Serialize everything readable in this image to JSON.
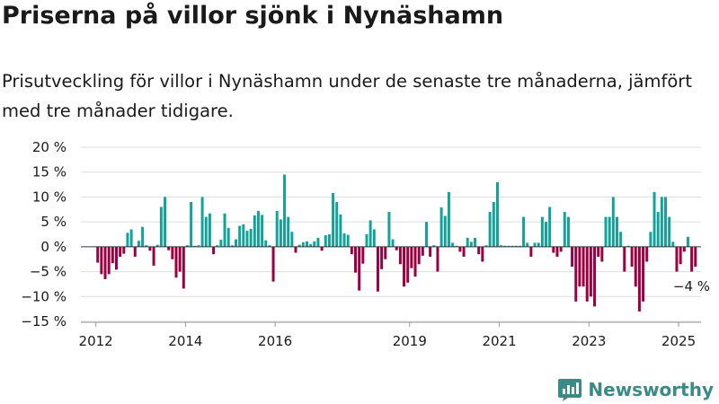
{
  "title": "Priserna på villor sjönk i Nynäshamn",
  "subtitle": "Prisutveckling för villor i Nynäshamn under de senaste tre månaderna, jämfört med tre månader tidigare.",
  "brand": {
    "name": "Newsworthy",
    "icon": "newsworthy-logo-icon",
    "color": "#3b8a86"
  },
  "colors": {
    "positive": "#11a39a",
    "negative": "#9b0042",
    "grid": "#dddddd",
    "zero_line": "#333333"
  },
  "chart_data": {
    "type": "bar",
    "xlabel": "",
    "ylabel": "",
    "ylim": [
      -15,
      20
    ],
    "yticks": [
      -15,
      -10,
      -5,
      0,
      5,
      10,
      15,
      20
    ],
    "ytick_labels": [
      "−15 %",
      "−10 %",
      "−5 %",
      "0 %",
      "5 %",
      "10 %",
      "15 %",
      "20 %"
    ],
    "xlim": [
      "2011-09",
      "2025-07"
    ],
    "xtick_labels": [
      {
        "label": "2012",
        "x": "2012-01"
      },
      {
        "label": "2014",
        "x": "2014-01"
      },
      {
        "label": "2016",
        "x": "2016-01"
      },
      {
        "label": "2019",
        "x": "2019-01"
      },
      {
        "label": "2021",
        "x": "2021-01"
      },
      {
        "label": "2023",
        "x": "2023-01"
      },
      {
        "label": "2025",
        "x": "2025-01"
      }
    ],
    "grid": true,
    "annotation": {
      "text": "−4 %",
      "x": "2025-03",
      "y": -4
    },
    "series": [
      {
        "values": [
          {
            "x": "2012-01",
            "y": -3.2
          },
          {
            "x": "2012-02",
            "y": -5.5
          },
          {
            "x": "2012-03",
            "y": -6.5
          },
          {
            "x": "2012-04",
            "y": -5.5
          },
          {
            "x": "2012-05",
            "y": -3.3
          },
          {
            "x": "2012-06",
            "y": -4.6
          },
          {
            "x": "2012-07",
            "y": -2.0
          },
          {
            "x": "2012-08",
            "y": -1.4
          },
          {
            "x": "2012-09",
            "y": 2.8
          },
          {
            "x": "2012-10",
            "y": 3.5
          },
          {
            "x": "2012-11",
            "y": -2.0
          },
          {
            "x": "2012-12",
            "y": 1.2
          },
          {
            "x": "2013-01",
            "y": 4.0
          },
          {
            "x": "2013-02",
            "y": 0.3
          },
          {
            "x": "2013-03",
            "y": -0.8
          },
          {
            "x": "2013-04",
            "y": -3.8
          },
          {
            "x": "2013-05",
            "y": 0.4
          },
          {
            "x": "2013-06",
            "y": 8.0
          },
          {
            "x": "2013-07",
            "y": 10.0
          },
          {
            "x": "2013-08",
            "y": -0.7
          },
          {
            "x": "2013-09",
            "y": -2.5
          },
          {
            "x": "2013-10",
            "y": -6.2
          },
          {
            "x": "2013-11",
            "y": -5.0
          },
          {
            "x": "2013-12",
            "y": -8.4
          },
          {
            "x": "2014-01",
            "y": 0.3
          },
          {
            "x": "2014-02",
            "y": 9.0
          },
          {
            "x": "2014-03",
            "y": 0.2
          },
          {
            "x": "2014-04",
            "y": 0.3
          },
          {
            "x": "2014-05",
            "y": 10.0
          },
          {
            "x": "2014-06",
            "y": 6.0
          },
          {
            "x": "2014-07",
            "y": 6.7
          },
          {
            "x": "2014-08",
            "y": -1.5
          },
          {
            "x": "2014-09",
            "y": 0.3
          },
          {
            "x": "2014-10",
            "y": 1.4
          },
          {
            "x": "2014-11",
            "y": 6.7
          },
          {
            "x": "2014-12",
            "y": 3.8
          },
          {
            "x": "2015-01",
            "y": 0.3
          },
          {
            "x": "2015-02",
            "y": 1.5
          },
          {
            "x": "2015-03",
            "y": 4.2
          },
          {
            "x": "2015-04",
            "y": 4.5
          },
          {
            "x": "2015-05",
            "y": 3.2
          },
          {
            "x": "2015-06",
            "y": 3.6
          },
          {
            "x": "2015-07",
            "y": 6.3
          },
          {
            "x": "2015-08",
            "y": 7.2
          },
          {
            "x": "2015-09",
            "y": 6.4
          },
          {
            "x": "2015-10",
            "y": 1.3
          },
          {
            "x": "2015-11",
            "y": 0.3
          },
          {
            "x": "2015-12",
            "y": -7.0
          },
          {
            "x": "2016-01",
            "y": 7.2
          },
          {
            "x": "2016-02",
            "y": 5.5
          },
          {
            "x": "2016-03",
            "y": 14.5
          },
          {
            "x": "2016-04",
            "y": 6.0
          },
          {
            "x": "2016-05",
            "y": 3.0
          },
          {
            "x": "2016-06",
            "y": -1.2
          },
          {
            "x": "2016-07",
            "y": 0.4
          },
          {
            "x": "2016-08",
            "y": 0.9
          },
          {
            "x": "2016-09",
            "y": 1.1
          },
          {
            "x": "2016-10",
            "y": 0.5
          },
          {
            "x": "2016-11",
            "y": 1.1
          },
          {
            "x": "2016-12",
            "y": 1.8
          },
          {
            "x": "2017-01",
            "y": -0.8
          },
          {
            "x": "2017-02",
            "y": 2.3
          },
          {
            "x": "2017-03",
            "y": 2.5
          },
          {
            "x": "2017-04",
            "y": 10.8
          },
          {
            "x": "2017-05",
            "y": 9.0
          },
          {
            "x": "2017-06",
            "y": 6.5
          },
          {
            "x": "2017-07",
            "y": 2.7
          },
          {
            "x": "2017-08",
            "y": 2.4
          },
          {
            "x": "2017-09",
            "y": -1.5
          },
          {
            "x": "2017-10",
            "y": -5.2
          },
          {
            "x": "2017-11",
            "y": -8.8
          },
          {
            "x": "2017-12",
            "y": -3.4
          },
          {
            "x": "2018-01",
            "y": 2.5
          },
          {
            "x": "2018-02",
            "y": 5.3
          },
          {
            "x": "2018-03",
            "y": 3.5
          },
          {
            "x": "2018-04",
            "y": -9.0
          },
          {
            "x": "2018-05",
            "y": -4.5
          },
          {
            "x": "2018-06",
            "y": -2.5
          },
          {
            "x": "2018-07",
            "y": 7.0
          },
          {
            "x": "2018-08",
            "y": 1.5
          },
          {
            "x": "2018-09",
            "y": -0.7
          },
          {
            "x": "2018-10",
            "y": -3.5
          },
          {
            "x": "2018-11",
            "y": -8.0
          },
          {
            "x": "2018-12",
            "y": -7.2
          },
          {
            "x": "2019-01",
            "y": -4.3
          },
          {
            "x": "2019-02",
            "y": -6.0
          },
          {
            "x": "2019-03",
            "y": -3.5
          },
          {
            "x": "2019-04",
            "y": -1.8
          },
          {
            "x": "2019-05",
            "y": 5.0
          },
          {
            "x": "2019-06",
            "y": -2.0
          },
          {
            "x": "2019-07",
            "y": 0.3
          },
          {
            "x": "2019-08",
            "y": -5.0
          },
          {
            "x": "2019-09",
            "y": 7.9
          },
          {
            "x": "2019-10",
            "y": 6.2
          },
          {
            "x": "2019-11",
            "y": 11.0
          },
          {
            "x": "2019-12",
            "y": 0.8
          },
          {
            "x": "2020-01",
            "y": 0.2
          },
          {
            "x": "2020-02",
            "y": -1.0
          },
          {
            "x": "2020-03",
            "y": -2.0
          },
          {
            "x": "2020-04",
            "y": 1.8
          },
          {
            "x": "2020-05",
            "y": 1.0
          },
          {
            "x": "2020-06",
            "y": 1.8
          },
          {
            "x": "2020-07",
            "y": -1.5
          },
          {
            "x": "2020-08",
            "y": -3.0
          },
          {
            "x": "2020-09",
            "y": 0.3
          },
          {
            "x": "2020-10",
            "y": 7.0
          },
          {
            "x": "2020-11",
            "y": 9.0
          },
          {
            "x": "2020-12",
            "y": 13.0
          },
          {
            "x": "2021-01",
            "y": 0.3
          },
          {
            "x": "2021-02",
            "y": 0.2
          },
          {
            "x": "2021-03",
            "y": 0.2
          },
          {
            "x": "2021-04",
            "y": 0.2
          },
          {
            "x": "2021-05",
            "y": 0.2
          },
          {
            "x": "2021-06",
            "y": 0.2
          },
          {
            "x": "2021-07",
            "y": 6.0
          },
          {
            "x": "2021-08",
            "y": 0.8
          },
          {
            "x": "2021-09",
            "y": -2.0
          },
          {
            "x": "2021-10",
            "y": 0.8
          },
          {
            "x": "2021-11",
            "y": 0.8
          },
          {
            "x": "2021-12",
            "y": 6.0
          },
          {
            "x": "2022-01",
            "y": 5.0
          },
          {
            "x": "2022-02",
            "y": 8.0
          },
          {
            "x": "2022-03",
            "y": -1.2
          },
          {
            "x": "2022-04",
            "y": -2.0
          },
          {
            "x": "2022-05",
            "y": -1.0
          },
          {
            "x": "2022-06",
            "y": 7.0
          },
          {
            "x": "2022-07",
            "y": 6.0
          },
          {
            "x": "2022-08",
            "y": -4.0
          },
          {
            "x": "2022-09",
            "y": -11.0
          },
          {
            "x": "2022-10",
            "y": -8.0
          },
          {
            "x": "2022-11",
            "y": -8.0
          },
          {
            "x": "2022-12",
            "y": -11.0
          },
          {
            "x": "2023-01",
            "y": -10.0
          },
          {
            "x": "2023-02",
            "y": -12.0
          },
          {
            "x": "2023-03",
            "y": -2.0
          },
          {
            "x": "2023-04",
            "y": -3.0
          },
          {
            "x": "2023-05",
            "y": 6.0
          },
          {
            "x": "2023-06",
            "y": 6.0
          },
          {
            "x": "2023-07",
            "y": 10.0
          },
          {
            "x": "2023-08",
            "y": 6.0
          },
          {
            "x": "2023-09",
            "y": 3.0
          },
          {
            "x": "2023-10",
            "y": -5.0
          },
          {
            "x": "2023-11",
            "y": 0.2
          },
          {
            "x": "2023-12",
            "y": -4.0
          },
          {
            "x": "2024-01",
            "y": -8.0
          },
          {
            "x": "2024-02",
            "y": -13.0
          },
          {
            "x": "2024-03",
            "y": -11.0
          },
          {
            "x": "2024-04",
            "y": -3.0
          },
          {
            "x": "2024-05",
            "y": 3.0
          },
          {
            "x": "2024-06",
            "y": 11.0
          },
          {
            "x": "2024-07",
            "y": 7.0
          },
          {
            "x": "2024-08",
            "y": 10.0
          },
          {
            "x": "2024-09",
            "y": 10.0
          },
          {
            "x": "2024-10",
            "y": 6.0
          },
          {
            "x": "2024-11",
            "y": 1.0
          },
          {
            "x": "2024-12",
            "y": -5.0
          },
          {
            "x": "2025-01",
            "y": -3.5
          },
          {
            "x": "2025-02",
            "y": -1.0
          },
          {
            "x": "2025-03",
            "y": 2.0
          },
          {
            "x": "2025-04",
            "y": -5.0
          },
          {
            "x": "2025-05",
            "y": -4.0
          }
        ]
      }
    ]
  }
}
